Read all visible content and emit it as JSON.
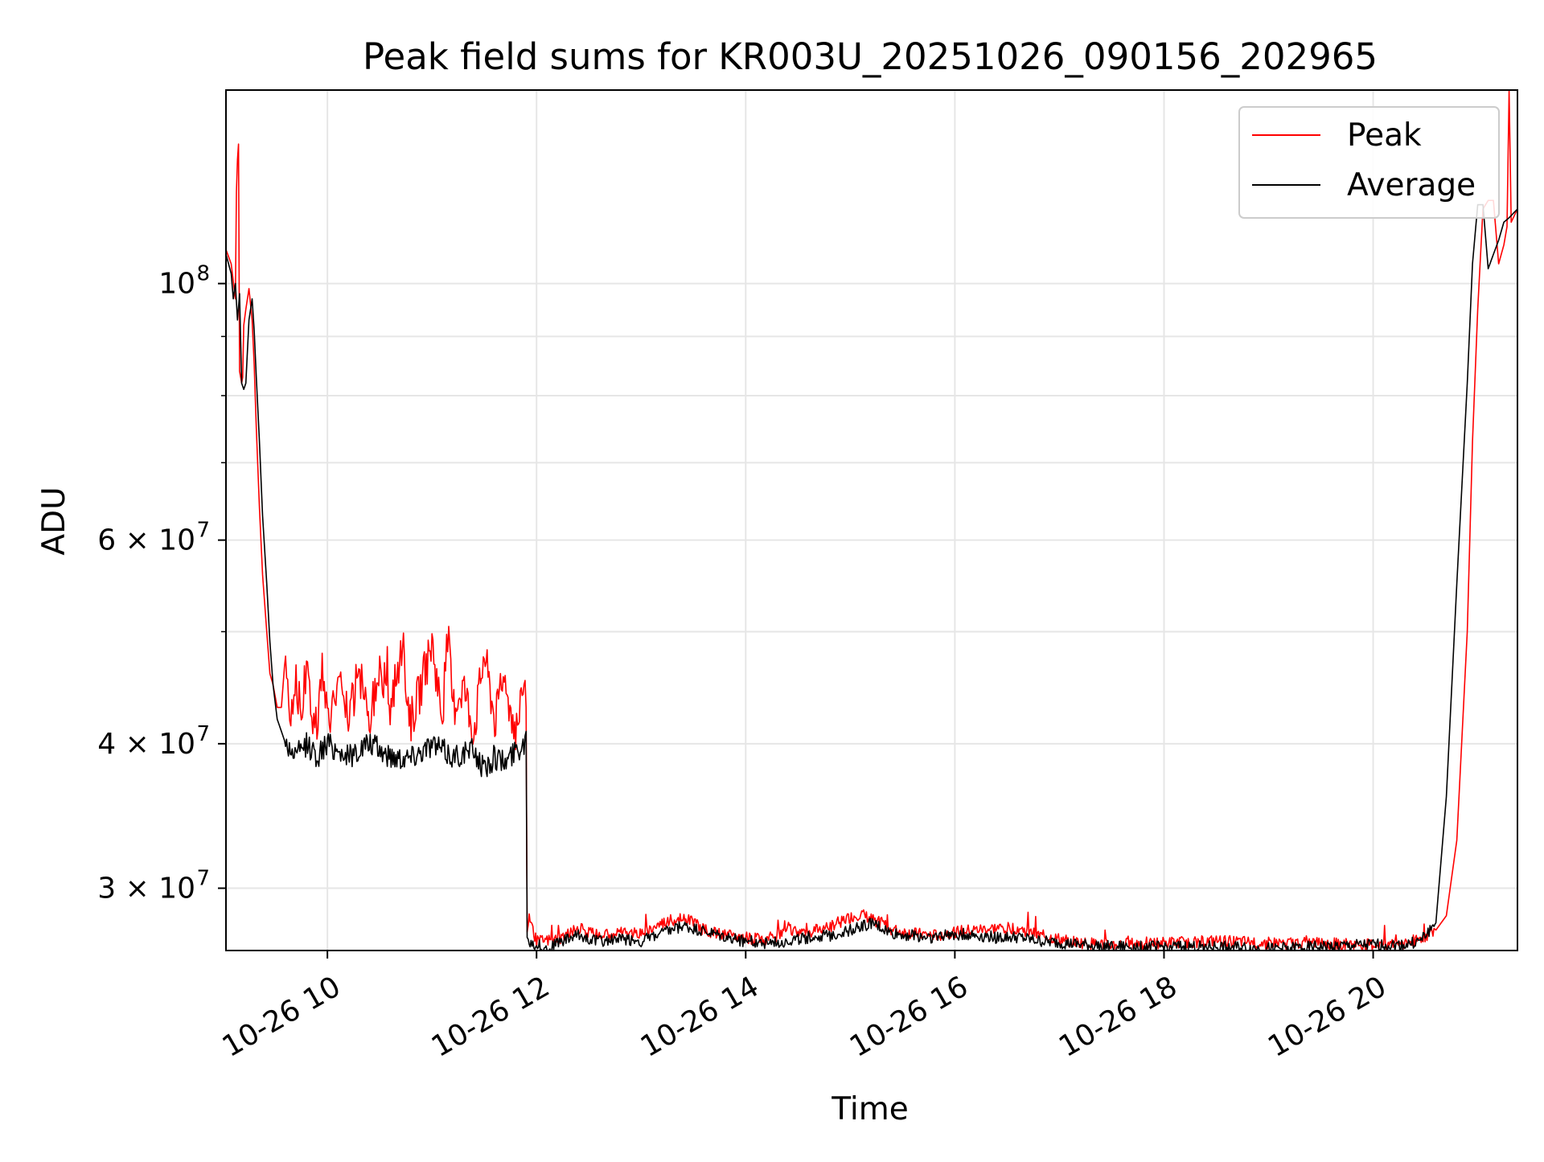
{
  "chart_data": {
    "type": "line",
    "title": "Peak field sums for KR003U_20251026_090156_202965",
    "xlabel": "Time",
    "ylabel": "ADU",
    "yscale": "log",
    "xlim": [
      9.03,
      21.38
    ],
    "ylim": [
      26500000,
      147000000
    ],
    "grid": true,
    "legend_position": "top-right",
    "x_ticks": [
      {
        "value": 10,
        "label": "10-26 10"
      },
      {
        "value": 12,
        "label": "10-26 12"
      },
      {
        "value": 14,
        "label": "10-26 14"
      },
      {
        "value": 16,
        "label": "10-26 16"
      },
      {
        "value": 18,
        "label": "10-26 18"
      },
      {
        "value": 20,
        "label": "10-26 20"
      }
    ],
    "y_ticks": [
      {
        "value": 100000000,
        "base": "10",
        "exp": "8"
      },
      {
        "value": 60000000,
        "base": "6 × 10",
        "exp": "7"
      },
      {
        "value": 40000000,
        "base": "4 × 10",
        "exp": "7"
      },
      {
        "value": 30000000,
        "base": "3 × 10",
        "exp": "7"
      }
    ],
    "y_minor_ticks": [
      50000000,
      70000000,
      80000000,
      90000000
    ],
    "series": [
      {
        "name": "Peak",
        "color": "#ff0000",
        "x": [
          9.03,
          9.08,
          9.12,
          9.13,
          9.14,
          9.15,
          9.16,
          9.17,
          9.18,
          9.19,
          9.2,
          9.22,
          9.25,
          9.28,
          9.3,
          9.32,
          9.35,
          9.38,
          9.42,
          9.45,
          9.48,
          9.52,
          9.56,
          9.6,
          9.65,
          9.7,
          9.75,
          9.8,
          9.85,
          9.9,
          9.95,
          10.0,
          10.1,
          10.2,
          10.3,
          10.4,
          10.5,
          10.6,
          10.7,
          10.8,
          10.9,
          11.0,
          11.1,
          11.15,
          11.2,
          11.3,
          11.4,
          11.5,
          11.6,
          11.7,
          11.8,
          11.88,
          11.9,
          11.91,
          11.93,
          12.0,
          12.2,
          12.4,
          12.6,
          12.8,
          13.0,
          13.2,
          13.4,
          13.5,
          13.6,
          13.8,
          14.0,
          14.2,
          14.4,
          14.6,
          14.8,
          15.0,
          15.1,
          15.2,
          15.3,
          15.4,
          15.6,
          15.8,
          16.0,
          16.2,
          16.4,
          16.6,
          16.8,
          17.0,
          17.2,
          17.5,
          18.0,
          18.5,
          19.0,
          19.5,
          20.0,
          20.3,
          20.45,
          20.6,
          20.7,
          20.8,
          20.9,
          20.95,
          21.0,
          21.05,
          21.1,
          21.15,
          21.2,
          21.25,
          21.28,
          21.3,
          21.32,
          21.38
        ],
        "y": [
          107000000,
          104000000,
          97000000,
          120000000,
          128000000,
          132000000,
          84000000,
          83000000,
          82000000,
          83000000,
          92000000,
          95000000,
          99000000,
          93000000,
          85000000,
          75000000,
          64000000,
          56000000,
          50000000,
          46000000,
          45000000,
          43000000,
          43000000,
          48000000,
          42000000,
          46000000,
          42000000,
          47000000,
          43000000,
          41000000,
          47000000,
          42000000,
          45000000,
          42000000,
          46000000,
          42000000,
          47000000,
          43000000,
          48000000,
          42000000,
          45000000,
          49000000,
          42000000,
          50000000,
          43000000,
          45000000,
          41000000,
          48000000,
          42000000,
          45000000,
          41000000,
          44000000,
          43000000,
          27500000,
          28200000,
          27000000,
          27100000,
          27700000,
          27300000,
          27500000,
          27400000,
          28000000,
          28300000,
          28000000,
          27600000,
          27300000,
          27200000,
          27000000,
          27600000,
          27500000,
          27800000,
          28300000,
          28500000,
          28200000,
          28000000,
          27600000,
          27400000,
          27300000,
          27500000,
          27600000,
          27700000,
          27700000,
          27300000,
          27100000,
          26900000,
          26800000,
          26900000,
          27000000,
          26900000,
          26900000,
          26800000,
          26900000,
          27100000,
          27600000,
          28400000,
          33000000,
          50000000,
          73000000,
          95000000,
          116000000,
          118000000,
          118000000,
          104000000,
          108000000,
          112000000,
          147000000,
          113000000,
          116000000
        ]
      },
      {
        "name": "Average",
        "color": "#000000",
        "x": [
          9.03,
          9.08,
          9.1,
          9.12,
          9.14,
          9.16,
          9.18,
          9.2,
          9.22,
          9.25,
          9.28,
          9.3,
          9.32,
          9.35,
          9.38,
          9.42,
          9.45,
          9.48,
          9.52,
          9.56,
          9.6,
          9.7,
          9.8,
          9.9,
          10.0,
          10.2,
          10.4,
          10.6,
          10.8,
          11.0,
          11.2,
          11.4,
          11.5,
          11.6,
          11.7,
          11.8,
          11.88,
          11.9,
          11.91,
          11.93,
          12.0,
          12.1,
          12.2,
          12.4,
          12.6,
          12.8,
          13.0,
          13.2,
          13.4,
          13.6,
          13.8,
          14.0,
          14.2,
          14.4,
          14.6,
          14.8,
          15.0,
          15.2,
          15.4,
          15.6,
          15.8,
          16.0,
          16.2,
          16.4,
          16.6,
          16.8,
          17.0,
          17.2,
          17.5,
          18.0,
          18.5,
          19.0,
          19.5,
          20.0,
          20.3,
          20.45,
          20.6,
          20.7,
          20.8,
          20.9,
          20.95,
          21.0,
          21.05,
          21.1,
          21.15,
          21.2,
          21.25,
          21.3,
          21.38
        ],
        "y": [
          106000000,
          102000000,
          97000000,
          100000000,
          93000000,
          98000000,
          82000000,
          81000000,
          82000000,
          93000000,
          97000000,
          91000000,
          83000000,
          73000000,
          63000000,
          55000000,
          49000000,
          45000000,
          42000000,
          41000000,
          40000000,
          39000000,
          40000000,
          39000000,
          40000000,
          39000000,
          40000000,
          39000000,
          39000000,
          40000000,
          39000000,
          39500000,
          38000000,
          39000000,
          38500000,
          39500000,
          40000000,
          41000000,
          27200000,
          27000000,
          26800000,
          26600000,
          26900000,
          27300000,
          27000000,
          27100000,
          27000000,
          27400000,
          27800000,
          27500000,
          27200000,
          27000000,
          26900000,
          27000000,
          27200000,
          27300000,
          27600000,
          28000000,
          27400000,
          27300000,
          27200000,
          27400000,
          27300000,
          27200000,
          27200000,
          27000000,
          26900000,
          26800000,
          26700000,
          26700000,
          26700000,
          26600000,
          26700000,
          26800000,
          26800000,
          27000000,
          28000000,
          36000000,
          55000000,
          82000000,
          104000000,
          117000000,
          117000000,
          103000000,
          106000000,
          109000000,
          113000000,
          114000000,
          116000000
        ]
      }
    ]
  }
}
